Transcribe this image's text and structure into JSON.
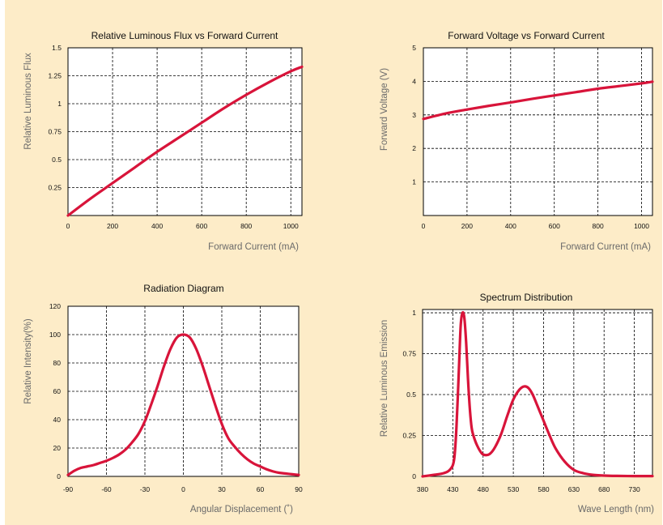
{
  "chart_data": [
    {
      "type": "line",
      "title": "Relative  Luminous  Flux    vs    Forward  Current",
      "xlabel": "Forward  Current  (mA)",
      "ylabel": "Relative  Luminous  Flux",
      "xlim": [
        0,
        1050
      ],
      "ylim": [
        0,
        1.5
      ],
      "xticks": [
        0,
        200,
        400,
        600,
        800,
        1000
      ],
      "xtick_labels": [
        "0",
        "200",
        "400",
        "600",
        "800",
        "1000"
      ],
      "yticks": [
        0.25,
        0.5,
        0.75,
        1,
        1.25,
        1.5
      ],
      "ytick_labels": [
        "0.25",
        "0.5",
        "0.75",
        "1",
        "1.25",
        "1.5"
      ],
      "grid": true,
      "series": [
        {
          "x": [
            0,
            100,
            200,
            300,
            400,
            500,
            600,
            700,
            800,
            900,
            1000,
            1050
          ],
          "y": [
            0,
            0.15,
            0.29,
            0.43,
            0.57,
            0.7,
            0.83,
            0.96,
            1.08,
            1.19,
            1.29,
            1.33
          ]
        }
      ]
    },
    {
      "type": "line",
      "title": "Forward  Voltage    vs    Forward  Current",
      "xlabel": "Forward  Current  (mA)",
      "ylabel": "Forward  Voltage  (V)",
      "xlim": [
        0,
        1050
      ],
      "ylim": [
        0,
        5
      ],
      "xticks": [
        0,
        200,
        400,
        600,
        800,
        1000
      ],
      "xtick_labels": [
        "0",
        "200",
        "400",
        "600",
        "800",
        "1000"
      ],
      "yticks": [
        1,
        2,
        3,
        4,
        5
      ],
      "ytick_labels": [
        "1",
        "2",
        "3",
        "4",
        "5"
      ],
      "grid": true,
      "series": [
        {
          "x": [
            0,
            100,
            200,
            300,
            400,
            500,
            600,
            700,
            800,
            900,
            1000,
            1050
          ],
          "y": [
            2.88,
            3.04,
            3.16,
            3.27,
            3.37,
            3.48,
            3.58,
            3.68,
            3.78,
            3.86,
            3.94,
            3.99
          ]
        }
      ]
    },
    {
      "type": "line",
      "title": "Radiation  Diagram",
      "xlabel": "Angular  Displacement  (˚)",
      "ylabel": "Relative  Intensity(%)",
      "xlim": [
        -90,
        90
      ],
      "ylim": [
        0,
        120
      ],
      "xticks": [
        -90,
        -60,
        -30,
        0,
        30,
        60,
        90
      ],
      "xtick_labels": [
        "-90",
        "-60",
        "-30",
        "0",
        "30",
        "60",
        "90"
      ],
      "yticks": [
        0,
        20,
        40,
        60,
        80,
        100,
        120
      ],
      "ytick_labels": [
        "0",
        "20",
        "40",
        "60",
        "80",
        "100",
        "120"
      ],
      "grid": true,
      "series": [
        {
          "x": [
            -90,
            -85,
            -80,
            -75,
            -70,
            -65,
            -60,
            -55,
            -50,
            -45,
            -40,
            -35,
            -30,
            -25,
            -20,
            -15,
            -10,
            -5,
            0,
            5,
            10,
            15,
            20,
            25,
            30,
            35,
            40,
            45,
            50,
            55,
            60,
            65,
            70,
            75,
            80,
            85,
            90
          ],
          "y": [
            1,
            4,
            6,
            7,
            8,
            9.5,
            11,
            13,
            15.5,
            19,
            24,
            30,
            39,
            51,
            64,
            78,
            90,
            98,
            100,
            98,
            90,
            78,
            64,
            50,
            37,
            27,
            21,
            16,
            12,
            9,
            7,
            5,
            3.5,
            2.5,
            2,
            1.5,
            1
          ]
        }
      ]
    },
    {
      "type": "line",
      "title": "Spectrum  Distribution",
      "xlabel": "Wave  Length  (nm)",
      "ylabel": "Relative  Luminous  Emission",
      "xlim": [
        380,
        760
      ],
      "ylim": [
        0,
        1.02
      ],
      "xticks": [
        380,
        430,
        480,
        530,
        580,
        630,
        680,
        730
      ],
      "xtick_labels": [
        "380",
        "430",
        "480",
        "530",
        "580",
        "630",
        "680",
        "730"
      ],
      "yticks": [
        0,
        0.25,
        0.5,
        0.75,
        1
      ],
      "ytick_labels": [
        "0",
        "0.25",
        "0.5",
        "0.75",
        "1"
      ],
      "grid": true,
      "series": [
        {
          "x": [
            380,
            400,
            415,
            425,
            432,
            436,
            440,
            443,
            446,
            449,
            452,
            455,
            458,
            461,
            464,
            470,
            478,
            485,
            492,
            500,
            510,
            520,
            530,
            540,
            548,
            555,
            562,
            570,
            580,
            590,
            600,
            615,
            630,
            645,
            660,
            680,
            700,
            730,
            760
          ],
          "y": [
            0.0,
            0.01,
            0.02,
            0.04,
            0.1,
            0.3,
            0.65,
            0.92,
            1.0,
            0.97,
            0.82,
            0.6,
            0.42,
            0.3,
            0.25,
            0.19,
            0.14,
            0.13,
            0.14,
            0.18,
            0.26,
            0.37,
            0.47,
            0.53,
            0.55,
            0.54,
            0.5,
            0.43,
            0.34,
            0.25,
            0.17,
            0.09,
            0.04,
            0.02,
            0.01,
            0.005,
            0.003,
            0.002,
            0.002
          ]
        }
      ]
    }
  ]
}
